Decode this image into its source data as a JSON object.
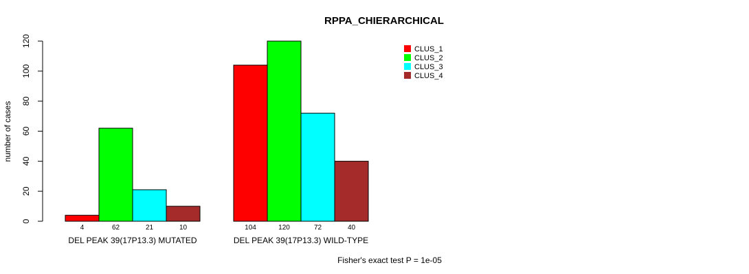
{
  "chart_data": {
    "type": "bar",
    "title": "RPPA_CHIERARCHICAL",
    "xlabel": "",
    "ylabel": "number of cases",
    "ylim": [
      0,
      120
    ],
    "yticks": [
      0,
      20,
      40,
      60,
      80,
      100,
      120
    ],
    "categories": [
      "DEL PEAK 39(17P13.3) MUTATED",
      "DEL PEAK 39(17P13.3) WILD-TYPE"
    ],
    "series": [
      {
        "name": "CLUS_1",
        "color": "#ff0000",
        "values": [
          4,
          104
        ]
      },
      {
        "name": "CLUS_2",
        "color": "#00ff00",
        "values": [
          62,
          120
        ]
      },
      {
        "name": "CLUS_3",
        "color": "#00ffff",
        "values": [
          21,
          72
        ]
      },
      {
        "name": "CLUS_4",
        "color": "#a52a2a",
        "values": [
          10,
          40
        ]
      }
    ],
    "legend_position": "top-right",
    "footnote": "Fisher's exact test P = 1e-05"
  }
}
